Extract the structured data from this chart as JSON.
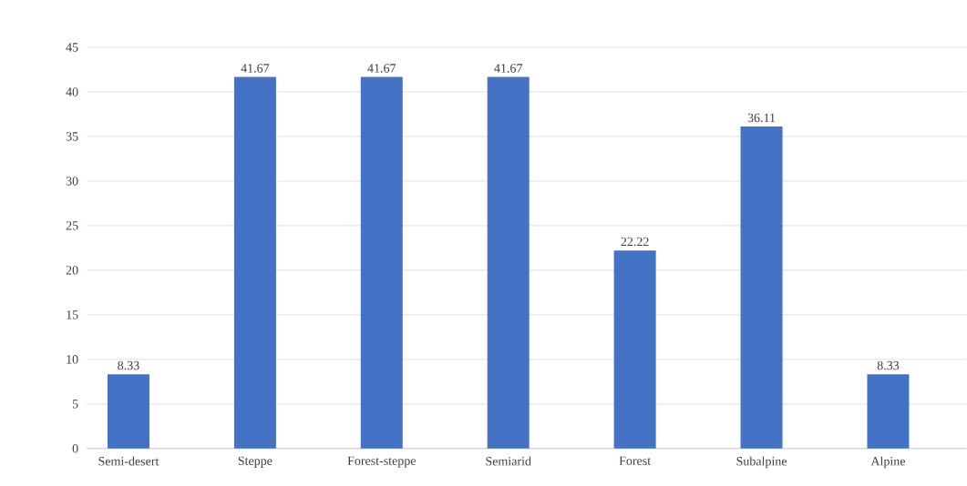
{
  "chart_data": {
    "type": "bar",
    "categories": [
      "Semi-desert",
      "Steppe",
      "Forest-steppe",
      "Semiarid",
      "Forest",
      "Subalpine",
      "Alpine"
    ],
    "values": [
      8.33,
      41.67,
      41.67,
      41.67,
      22.22,
      36.11,
      8.33
    ],
    "color": "#4472c4",
    "ylim": [
      0,
      45
    ],
    "yticks": [
      0,
      5,
      10,
      15,
      20,
      25,
      30,
      35,
      40,
      45
    ],
    "grid": "y",
    "data_labels": true
  }
}
